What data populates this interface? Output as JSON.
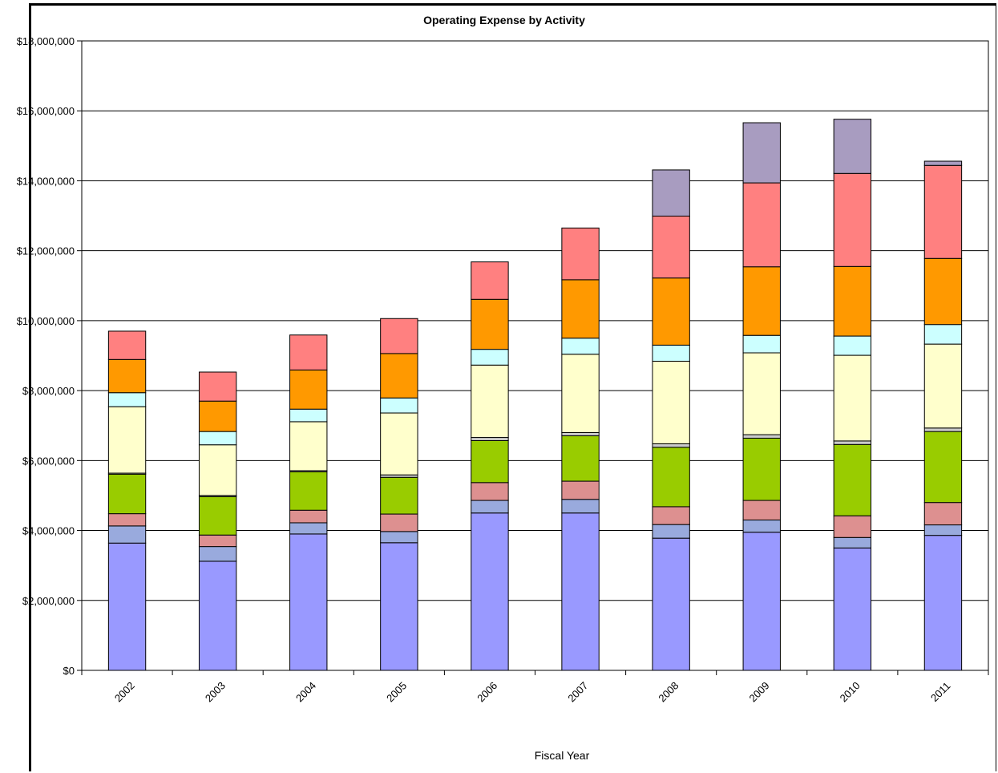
{
  "chart_data": {
    "type": "bar",
    "stacked": true,
    "title": "Operating Expense by Activity",
    "xlabel": "Fiscal Year",
    "ylabel": "",
    "ylim": [
      0,
      18000000
    ],
    "yticks": [
      "$0",
      "$2,000,000",
      "$4,000,000",
      "$6,000,000",
      "$8,000,000",
      "$10,000,000",
      "$12,000,000",
      "$14,000,000",
      "$16,000,000",
      "$18,000,000"
    ],
    "grid": true,
    "categories": [
      "2002",
      "2003",
      "2004",
      "2005",
      "2006",
      "2007",
      "2008",
      "2009",
      "2010",
      "2011"
    ],
    "series": [
      {
        "color": "#9999ff",
        "values": [
          3640000,
          3120000,
          3900000,
          3650000,
          4500000,
          4500000,
          3780000,
          3950000,
          3500000,
          3860000
        ]
      },
      {
        "color": "#99aadd",
        "values": [
          490000,
          420000,
          320000,
          320000,
          360000,
          390000,
          390000,
          350000,
          300000,
          300000
        ]
      },
      {
        "color": "#dd9090",
        "values": [
          350000,
          330000,
          360000,
          500000,
          510000,
          520000,
          510000,
          560000,
          620000,
          640000
        ]
      },
      {
        "color": "#99cc00",
        "values": [
          1130000,
          1100000,
          1100000,
          1050000,
          1200000,
          1300000,
          1700000,
          1780000,
          2040000,
          2030000
        ]
      },
      {
        "color": "#cccccc",
        "values": [
          30000,
          30000,
          30000,
          70000,
          90000,
          90000,
          100000,
          100000,
          100000,
          100000
        ]
      },
      {
        "color": "#ffffcc",
        "values": [
          1900000,
          1450000,
          1400000,
          1770000,
          2070000,
          2240000,
          2360000,
          2340000,
          2450000,
          2400000
        ]
      },
      {
        "color": "#ccffff",
        "values": [
          400000,
          380000,
          360000,
          430000,
          450000,
          460000,
          460000,
          500000,
          550000,
          560000
        ]
      },
      {
        "color": "#ff9900",
        "values": [
          950000,
          870000,
          1120000,
          1270000,
          1430000,
          1670000,
          1920000,
          1960000,
          1990000,
          1890000
        ]
      },
      {
        "color": "#ff8080",
        "values": [
          810000,
          830000,
          1000000,
          1000000,
          1070000,
          1480000,
          1770000,
          2400000,
          2660000,
          2660000
        ]
      },
      {
        "color": "#a89cc0",
        "values": [
          0,
          0,
          0,
          0,
          0,
          0,
          1320000,
          1720000,
          1550000,
          120000
        ]
      }
    ]
  }
}
